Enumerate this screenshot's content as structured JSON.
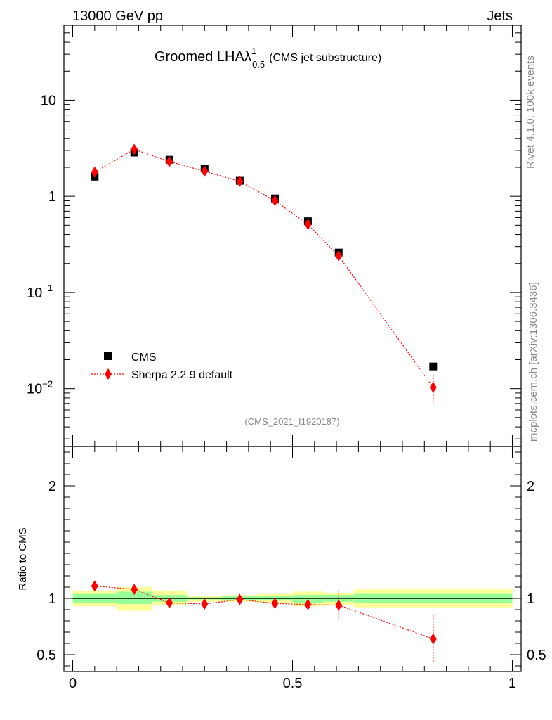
{
  "header": {
    "left": "13000 GeV pp",
    "right": "Jets"
  },
  "title": {
    "main": "Groomed LHA",
    "lambda": "λ",
    "sup": "1",
    "sub": "0.5",
    "note": "(CMS jet substructure)"
  },
  "side_text": {
    "rivet": "Rivet 4.1.0,  100k events",
    "mcplots": "mcplots.cern.ch [arXiv:1306.3436]"
  },
  "analysis_id": "(CMS_2021_I1920187)",
  "colors": {
    "data": "#000000",
    "mc": "#ff0000",
    "band_inner": "#99ff99",
    "band_outer": "#ffff99"
  },
  "chart_data": [
    {
      "type": "scatter",
      "name": "main",
      "yscale": "log",
      "ylim": [
        0.0025,
        60
      ],
      "xlim": [
        -0.02,
        1.02
      ],
      "yticks": [
        {
          "value": 10,
          "label": "10",
          "sup": ""
        },
        {
          "value": 1,
          "label": "1",
          "sup": ""
        },
        {
          "value": 0.1,
          "label": "10",
          "sup": "−1"
        },
        {
          "value": 0.01,
          "label": "10",
          "sup": "−2"
        }
      ],
      "legend": {
        "position": "bottom-left",
        "entries": [
          "CMS",
          "Sherpa 2.2.9 default"
        ]
      },
      "series": [
        {
          "name": "CMS",
          "x": [
            0.05,
            0.14,
            0.22,
            0.3,
            0.38,
            0.46,
            0.535,
            0.605,
            0.82
          ],
          "y": [
            1.6,
            2.85,
            2.4,
            1.95,
            1.45,
            0.95,
            0.55,
            0.26,
            0.017
          ]
        },
        {
          "name": "Sherpa 2.2.9 default",
          "x": [
            0.05,
            0.14,
            0.22,
            0.3,
            0.38,
            0.46,
            0.535,
            0.605,
            0.82
          ],
          "y": [
            1.78,
            3.08,
            2.3,
            1.82,
            1.43,
            0.9,
            0.51,
            0.24,
            0.0103
          ],
          "yerr": [
            0.06,
            0.08,
            0.06,
            0.05,
            0.05,
            0.05,
            0.04,
            0.02,
            0.0035
          ]
        }
      ]
    },
    {
      "type": "scatter",
      "name": "ratio",
      "ylabel": "Ratio to CMS",
      "ylim": [
        0.35,
        2.35
      ],
      "xlim": [
        -0.02,
        1.02
      ],
      "xticks": [
        {
          "value": 0,
          "label": "0"
        },
        {
          "value": 0.5,
          "label": "0.5"
        },
        {
          "value": 1,
          "label": "1"
        }
      ],
      "yticks": [
        {
          "value": 2,
          "label": "2"
        },
        {
          "value": 1,
          "label": "1"
        },
        {
          "value": 0.5,
          "label": "0.5"
        }
      ],
      "bands": [
        {
          "x0": 0.0,
          "x1": 0.1,
          "outer": [
            0.93,
            1.07
          ],
          "inner": [
            0.96,
            1.04
          ]
        },
        {
          "x0": 0.1,
          "x1": 0.18,
          "outer": [
            0.89,
            1.1
          ],
          "inner": [
            0.95,
            1.06
          ]
        },
        {
          "x0": 0.18,
          "x1": 0.26,
          "outer": [
            0.94,
            1.07
          ],
          "inner": [
            0.97,
            1.03
          ]
        },
        {
          "x0": 0.26,
          "x1": 0.34,
          "outer": [
            0.97,
            1.02
          ],
          "inner": [
            0.99,
            1.01
          ]
        },
        {
          "x0": 0.34,
          "x1": 0.42,
          "outer": [
            0.97,
            1.03
          ],
          "inner": [
            0.98,
            1.02
          ]
        },
        {
          "x0": 0.42,
          "x1": 0.5,
          "outer": [
            0.96,
            1.04
          ],
          "inner": [
            0.98,
            1.02
          ]
        },
        {
          "x0": 0.5,
          "x1": 0.57,
          "outer": [
            0.93,
            1.06
          ],
          "inner": [
            0.96,
            1.03
          ]
        },
        {
          "x0": 0.57,
          "x1": 0.64,
          "outer": [
            0.94,
            1.05
          ],
          "inner": [
            0.97,
            1.03
          ]
        },
        {
          "x0": 0.64,
          "x1": 1.0,
          "outer": [
            0.92,
            1.08
          ],
          "inner": [
            0.96,
            1.04
          ]
        }
      ],
      "series": [
        {
          "name": "Sherpa 2.2.9 default",
          "x": [
            0.05,
            0.14,
            0.22,
            0.3,
            0.38,
            0.46,
            0.535,
            0.605,
            0.82
          ],
          "y": [
            1.11,
            1.08,
            0.96,
            0.95,
            0.99,
            0.955,
            0.945,
            0.94,
            0.64
          ],
          "yerr": [
            0.04,
            0.04,
            0.03,
            0.03,
            0.05,
            0.05,
            0.06,
            0.13,
            0.21
          ]
        }
      ]
    }
  ]
}
